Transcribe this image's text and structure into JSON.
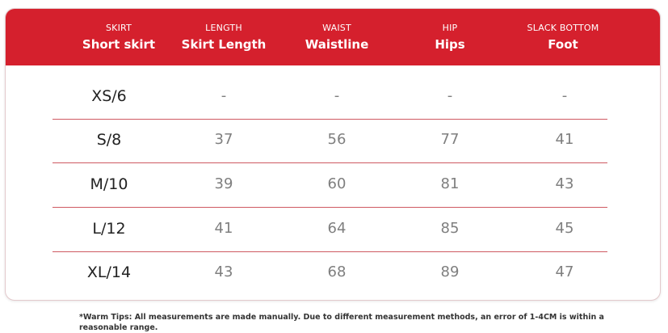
{
  "columns": [
    {
      "label": "SKIRT",
      "title": "Short skirt"
    },
    {
      "label": "LENGTH",
      "title": "Skirt Length"
    },
    {
      "label": "WAIST",
      "title": "Waistline"
    },
    {
      "label": "HIP",
      "title": "Hips"
    },
    {
      "label": "SLACK BOTTOM",
      "title": "Foot"
    }
  ],
  "rows": [
    {
      "size": "XS/6",
      "length": "-",
      "waist": "-",
      "hip": "-",
      "foot": "-"
    },
    {
      "size": "S/8",
      "length": "37",
      "waist": "56",
      "hip": "77",
      "foot": "41"
    },
    {
      "size": "M/10",
      "length": "39",
      "waist": "60",
      "hip": "81",
      "foot": "43"
    },
    {
      "size": "L/12",
      "length": "41",
      "waist": "64",
      "hip": "85",
      "foot": "45"
    },
    {
      "size": "XL/14",
      "length": "43",
      "waist": "68",
      "hip": "89",
      "foot": "47"
    }
  ],
  "tips": "*Warm Tips: All measurements are made manually. Due to different measurement methods, an error of 1-4CM is within a reasonable range.",
  "colors": {
    "header": "#d5202d",
    "divider": "#cf5a62"
  }
}
